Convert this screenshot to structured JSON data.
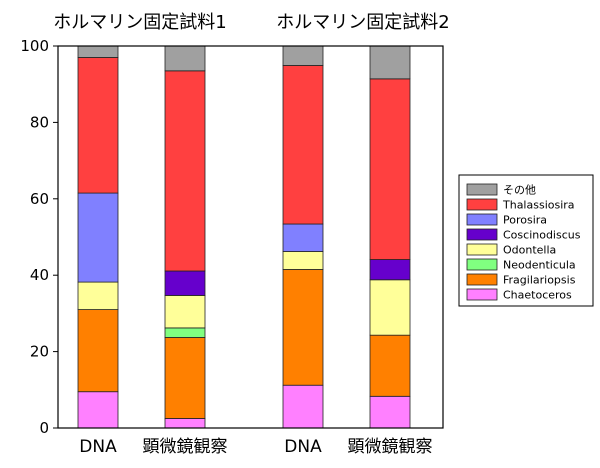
{
  "chart_data": {
    "type": "bar",
    "stacked": true,
    "group_titles": [
      "ホルマリン固定試料1",
      "ホルマリン固定試料2"
    ],
    "categories": [
      "DNA",
      "顕微鏡観察",
      "DNA",
      "顕微鏡観察"
    ],
    "ylim": [
      0,
      100
    ],
    "yticks": [
      "0",
      "20",
      "40",
      "60",
      "80",
      "100"
    ],
    "grid": false,
    "legend_position": "right",
    "series": [
      {
        "name": "Chaetoceros",
        "color": "#ff80ff",
        "values": [
          9.5,
          2.5,
          11.2,
          8.3
        ]
      },
      {
        "name": "Fragilariopsis",
        "color": "#ff8000",
        "values": [
          21.5,
          21.2,
          30.3,
          16.0
        ]
      },
      {
        "name": "Neodenticula",
        "color": "#80ff80",
        "values": [
          0,
          2.5,
          0,
          0
        ]
      },
      {
        "name": "Odontella",
        "color": "#ffff99",
        "values": [
          7.2,
          8.5,
          4.7,
          14.5
        ]
      },
      {
        "name": "Coscinodiscus",
        "color": "#6600cc",
        "values": [
          0,
          6.4,
          0,
          5.3
        ]
      },
      {
        "name": "Porosira",
        "color": "#8080ff",
        "values": [
          23.3,
          0,
          7.2,
          0
        ]
      },
      {
        "name": "Thalassiosira",
        "color": "#ff4040",
        "values": [
          35.5,
          52.4,
          41.5,
          47.3
        ]
      },
      {
        "name": "その他",
        "color": "#a0a0a0",
        "values": [
          3.0,
          6.5,
          5.1,
          8.6
        ]
      }
    ]
  }
}
